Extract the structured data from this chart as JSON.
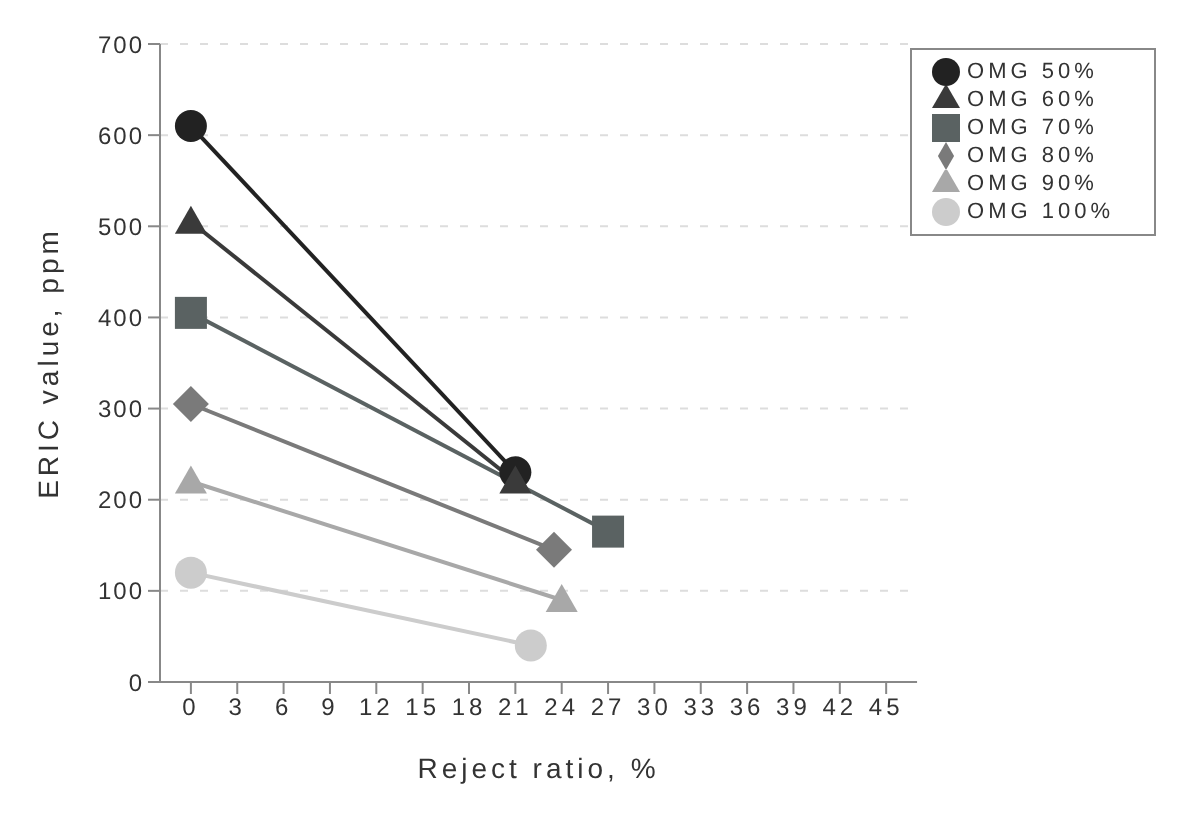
{
  "chart_data": {
    "type": "line",
    "xlabel": "Reject ratio, %",
    "ylabel": "ERIC value, ppm",
    "xlim": [
      -2,
      47
    ],
    "xticks": [
      0,
      3,
      6,
      9,
      12,
      15,
      18,
      21,
      24,
      27,
      30,
      33,
      36,
      39,
      42,
      45
    ],
    "ylim": [
      0,
      700
    ],
    "yticks": [
      0,
      100,
      200,
      300,
      400,
      500,
      600,
      700
    ],
    "grid": "y",
    "legend": "top right",
    "series": [
      {
        "name": "OMG 50%",
        "color": "#222222",
        "marker": "circle",
        "x": [
          0,
          21
        ],
        "values": [
          610,
          230
        ]
      },
      {
        "name": "OMG 60%",
        "color": "#3a3a3a",
        "marker": "triangle",
        "x": [
          0,
          21
        ],
        "values": [
          505,
          220
        ]
      },
      {
        "name": "OMG 70%",
        "color": "#5a6262",
        "marker": "square",
        "x": [
          0,
          27
        ],
        "values": [
          405,
          165
        ]
      },
      {
        "name": "OMG 80%",
        "color": "#7a7a7a",
        "marker": "diamond",
        "x": [
          0,
          23.5
        ],
        "values": [
          305,
          145
        ]
      },
      {
        "name": "OMG 90%",
        "color": "#a8a8a8",
        "marker": "triangle",
        "x": [
          0,
          24
        ],
        "values": [
          220,
          90
        ]
      },
      {
        "name": "OMG 100%",
        "color": "#cccccc",
        "marker": "circle",
        "x": [
          0,
          22
        ],
        "values": [
          120,
          40
        ]
      }
    ]
  }
}
